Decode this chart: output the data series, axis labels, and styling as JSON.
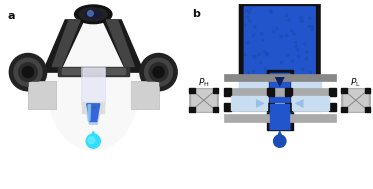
{
  "bg_color": "#ffffff",
  "panel_a_label": "a",
  "panel_b_label": "b",
  "dark_blue": "#1a3580",
  "medium_blue": "#2255cc",
  "bright_blue": "#3366dd",
  "light_blue": "#99bfe8",
  "very_light_blue": "#c8ddf0",
  "darkest_blue": "#0d2060",
  "gray_dark": "#666666",
  "gray_med": "#999999",
  "gray_light": "#c0c0c0",
  "gray_platform": "#aaaaaa",
  "black": "#111111",
  "drop_color_a_body": "#00aacc",
  "drop_color_a_tip": "#33ddff",
  "drop_color_b": "#1a4db5",
  "arrow_blue": "#7ab2e0",
  "black_sq": "#111111",
  "electrode_bg": "#d0d0d0",
  "electrode_outline": "#888888"
}
